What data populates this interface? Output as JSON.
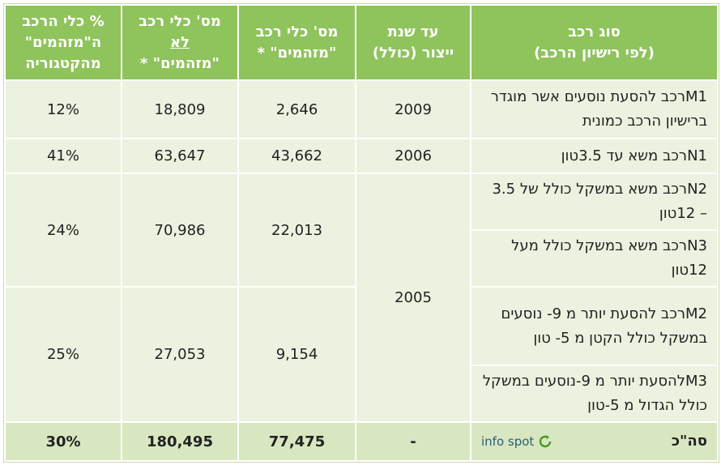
{
  "table": {
    "header": [
      [
        "סוג רכב",
        "(לפי רישיון הרכב)"
      ],
      [
        "עד שנת",
        "ייצור (כולל)"
      ],
      [
        "מס' כלי רכב",
        "\"מזהמים\" *"
      ],
      [
        "מס' כלי רכב",
        "לא",
        "\"מזהמים\" *"
      ],
      [
        "% כלי הרכב",
        "ה\"מזהמים\"",
        "מהקטגוריה"
      ]
    ],
    "types": [
      "M1רכב להסעת נוסעים אשר מוגדר ברישיון הרכב כמונית",
      "N1רכב משא עד 3.5טון",
      "N2רכב משא במשקל כולל של 3.5 – 12טון",
      "N3רכב משא במשקל כולל מעל 12טון",
      "M2רכב להסעת יותר מ 9- נוסעים במשקל כולל הקטן מ 5- טון",
      "M3להסעת יותר מ 9-נוסעים במשקל כולל הגדול מ 5-טון"
    ],
    "years": [
      "2009",
      "2006",
      "2005"
    ],
    "polluting": [
      "2,646",
      "43,662",
      "22,013",
      "9,154"
    ],
    "non_polluting": [
      "18,809",
      "63,647",
      "70,986",
      "27,053"
    ],
    "percent": [
      "12%",
      "41%",
      "24%",
      "25%"
    ],
    "total": {
      "label": "סה\"כ",
      "logo": "info spot",
      "year": "-",
      "polluting": "77,475",
      "non_polluting": "180,495",
      "percent": "30%"
    }
  }
}
